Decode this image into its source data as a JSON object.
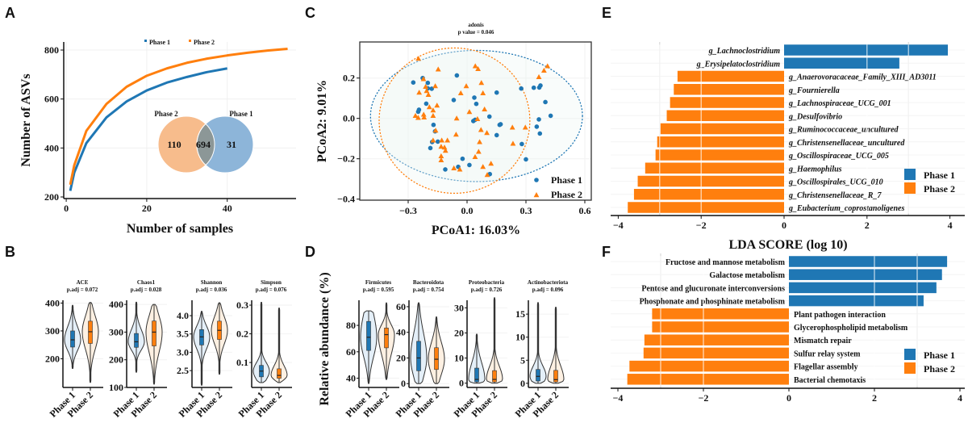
{
  "panel_labels": {
    "A": "A",
    "B": "B",
    "C": "C",
    "D": "D",
    "E": "E",
    "F": "F"
  },
  "colors": {
    "phase1": "#1f77b4",
    "phase2": "#ff7f0e",
    "venn_phase2": "#f7bc8c",
    "venn_phase1": "#8db5d9",
    "venn_overlap": "#8c9797"
  },
  "chart_data": [
    {
      "panel": "A",
      "type": "line",
      "xlabel": "Number of samples",
      "ylabel": "Number of ASVs",
      "xlim": [
        0,
        57
      ],
      "ylim": [
        193,
        833
      ],
      "xticks": [
        0,
        20,
        40
      ],
      "yticks": [
        200,
        400,
        600,
        800
      ],
      "grid": true,
      "legend_position": "top",
      "series": [
        {
          "name": "Phase 1",
          "color": "#1f77b4",
          "x": [
            1,
            2,
            5,
            10,
            15,
            20,
            25,
            30,
            35,
            40
          ],
          "y": [
            225,
            300,
            420,
            525,
            590,
            635,
            667,
            690,
            710,
            725
          ]
        },
        {
          "name": "Phase 2",
          "color": "#ff7f0e",
          "x": [
            1,
            2,
            5,
            10,
            15,
            20,
            25,
            30,
            35,
            40,
            45,
            50,
            55
          ],
          "y": [
            250,
            330,
            470,
            580,
            650,
            695,
            725,
            748,
            765,
            778,
            789,
            798,
            805
          ]
        }
      ],
      "venn": {
        "sets": [
          {
            "name": "Phase 2",
            "unique": "110"
          },
          {
            "name": "Phase 1",
            "unique": "31"
          }
        ],
        "shared": "694"
      }
    },
    {
      "panel": "C",
      "type": "scatter",
      "title": "adonis",
      "subtitle": "p value = 0.046",
      "xlabel": "PCoA1: 16.03%",
      "ylabel": "PCoA2: 9.01%",
      "xlim": [
        -0.547,
        0.633
      ],
      "ylim": [
        -0.405,
        0.379
      ],
      "xticks": [
        -0.3,
        0.0,
        0.3,
        0.6
      ],
      "xtick_labels": [
        "-0.3",
        "0.0",
        "0.3",
        "0.6"
      ],
      "yticks": [
        -0.4,
        -0.2,
        0.0,
        0.2
      ],
      "ytick_labels": [
        "-0.4",
        "-0.2",
        "0.0",
        "0.2"
      ],
      "legend_position": "bottom-right",
      "series": [
        {
          "name": "Phase 1",
          "color": "#1f77b4",
          "marker": "circle",
          "ellipse": {
            "center": [
              0.048,
              0.012
            ],
            "radii": [
              0.54,
              0.325
            ]
          },
          "points": [
            [
              -0.274,
              0.178
            ],
            [
              -0.226,
              0.2
            ],
            [
              -0.2,
              0.176
            ],
            [
              -0.2,
              0.149
            ],
            [
              -0.18,
              0.147
            ],
            [
              -0.208,
              0.073
            ],
            [
              -0.245,
              0.043
            ],
            [
              -0.249,
              0.033
            ],
            [
              -0.171,
              -0.032
            ],
            [
              -0.163,
              -0.064
            ],
            [
              -0.178,
              -0.117
            ],
            [
              -0.149,
              -0.115
            ],
            [
              -0.187,
              -0.147
            ],
            [
              -0.111,
              -0.253
            ],
            [
              -0.052,
              0.213
            ],
            [
              -0.068,
              0.091
            ],
            [
              0.037,
              0.103
            ],
            [
              0.047,
              0.072
            ],
            [
              0.032,
              -0.013
            ],
            [
              0.041,
              -0.007
            ],
            [
              0.151,
              0.128
            ],
            [
              0.114,
              0.009
            ],
            [
              0.171,
              -0.029
            ],
            [
              0.166,
              -0.032
            ],
            [
              0.151,
              -0.083
            ],
            [
              -0.023,
              -0.2
            ],
            [
              -0.045,
              -0.24
            ],
            [
              0.012,
              -0.231
            ],
            [
              0.116,
              -0.276
            ],
            [
              0.276,
              0.148
            ],
            [
              0.279,
              -0.127
            ],
            [
              0.3,
              -0.203
            ],
            [
              0.34,
              0.152
            ],
            [
              0.368,
              0.153
            ],
            [
              0.374,
              0.163
            ],
            [
              0.399,
              0.081
            ],
            [
              0.426,
              0.013
            ],
            [
              0.366,
              -0.005
            ],
            [
              0.355,
              -0.041
            ],
            [
              0.371,
              -0.075
            ]
          ]
        },
        {
          "name": "Phase 2",
          "color": "#ff7f0e",
          "marker": "triangle",
          "ellipse": {
            "center": [
              -0.064,
              -0.011
            ],
            "radii": [
              0.384,
              0.36
            ]
          },
          "points": [
            [
              -0.248,
              0.296
            ],
            [
              -0.147,
              0.243
            ],
            [
              -0.222,
              0.195
            ],
            [
              -0.211,
              0.157
            ],
            [
              -0.244,
              0.128
            ],
            [
              -0.206,
              0.136
            ],
            [
              -0.197,
              0.117
            ],
            [
              -0.162,
              0.16
            ],
            [
              -0.192,
              0.056
            ],
            [
              -0.153,
              0.064
            ],
            [
              -0.173,
              0.04
            ],
            [
              -0.173,
              0.013
            ],
            [
              -0.263,
              0.013
            ],
            [
              -0.249,
              0.003
            ],
            [
              -0.221,
              0.019
            ],
            [
              -0.219,
              0.005
            ],
            [
              -0.16,
              -0.06
            ],
            [
              -0.173,
              -0.109
            ],
            [
              -0.129,
              -0.109
            ],
            [
              -0.1,
              -0.109
            ],
            [
              -0.132,
              -0.14
            ],
            [
              -0.115,
              -0.144
            ],
            [
              -0.11,
              -0.16
            ],
            [
              -0.132,
              -0.187
            ],
            [
              -0.132,
              -0.207
            ],
            [
              -0.067,
              -0.247
            ],
            [
              -0.037,
              -0.253
            ],
            [
              0.042,
              0.259
            ],
            [
              0.056,
              0.245
            ],
            [
              -0.004,
              0.16
            ],
            [
              -0.032,
              0.125
            ],
            [
              0.073,
              0.176
            ],
            [
              0.081,
              0.125
            ],
            [
              0.012,
              0.032
            ],
            [
              -0.053,
              0.0
            ],
            [
              0.089,
              0.045
            ],
            [
              -0.056,
              -0.08
            ],
            [
              0.053,
              -0.003
            ],
            [
              0.071,
              -0.057
            ],
            [
              0.101,
              -0.072
            ],
            [
              0.064,
              -0.117
            ],
            [
              0.059,
              -0.165
            ],
            [
              0.041,
              -0.191
            ],
            [
              0.081,
              -0.24
            ],
            [
              0.103,
              -0.28
            ],
            [
              0.122,
              -0.224
            ],
            [
              0.231,
              -0.045
            ],
            [
              0.297,
              -0.045
            ],
            [
              0.234,
              -0.125
            ],
            [
              0.366,
              0.205
            ],
            [
              0.392,
              0.237
            ],
            [
              0.41,
              0.259
            ]
          ]
        }
      ]
    },
    {
      "panel": "B",
      "type": "violin",
      "ylabel": "",
      "subplots": [
        {
          "title": "ACE",
          "subtitle": "p.adj = 0.072",
          "ylim": [
            97,
            410
          ],
          "yticks": [
            200,
            300,
            400
          ],
          "ytick_labels": [
            "200",
            "300",
            "400"
          ],
          "groups": [
            {
              "name": "Phase 1",
              "min": 165,
              "q1": 242,
              "median": 268,
              "q3": 300,
              "max": 392
            },
            {
              "name": "Phase 2",
              "min": 115,
              "q1": 255,
              "median": 297,
              "q3": 335,
              "max": 402
            }
          ]
        },
        {
          "title": "Chaos1",
          "subtitle": "p.adj = 0.028",
          "ylim": [
            100,
            415
          ],
          "yticks": [
            100,
            200,
            300,
            400
          ],
          "ytick_labels": [
            "100",
            "200",
            "300",
            "400"
          ],
          "groups": [
            {
              "name": "Phase 1",
              "min": 155,
              "q1": 245,
              "median": 265,
              "q3": 295,
              "max": 408
            },
            {
              "name": "Phase 2",
              "min": 112,
              "q1": 250,
              "median": 300,
              "q3": 340,
              "max": 400
            }
          ]
        },
        {
          "title": "Shannon",
          "subtitle": "p.adj = 0.036",
          "ylim": [
            2.04,
            4.42
          ],
          "yticks": [
            2.5,
            3.0,
            3.5,
            4.0
          ],
          "ytick_labels": [
            "2.5",
            "3.0",
            "3.5",
            "4.0"
          ],
          "groups": [
            {
              "name": "Phase 1",
              "min": 2.1,
              "q1": 3.2,
              "median": 3.42,
              "q3": 3.62,
              "max": 4.12
            },
            {
              "name": "Phase 2",
              "min": 2.4,
              "q1": 3.35,
              "median": 3.6,
              "q3": 3.85,
              "max": 4.35
            }
          ]
        },
        {
          "title": "Simpson",
          "subtitle": "p.adj = 0.076",
          "ylim": [
            0.013,
            0.317
          ],
          "yticks": [
            0.1,
            0.2,
            0.3
          ],
          "ytick_labels": [
            "0.1",
            "0.2",
            "0.3"
          ],
          "groups": [
            {
              "name": "Phase 1",
              "min": 0.03,
              "q1": 0.05,
              "median": 0.07,
              "q3": 0.09,
              "max": 0.31
            },
            {
              "name": "Phase 2",
              "min": 0.03,
              "q1": 0.045,
              "median": 0.055,
              "q3": 0.078,
              "max": 0.29
            }
          ]
        }
      ]
    },
    {
      "panel": "D",
      "type": "violin",
      "ylabel": "Relative abundance (%)",
      "subplots": [
        {
          "title": "Firmicutes",
          "subtitle": "p.adj = 0.595",
          "ylim": [
            33,
            99
          ],
          "yticks": [
            40,
            60,
            80
          ],
          "ytick_labels": [
            "40",
            "60",
            "80"
          ],
          "groups": [
            {
              "name": "Phase 1",
              "min": 36,
              "q1": 61,
              "median": 71,
              "q3": 83,
              "max": 91
            },
            {
              "name": "Phase 2",
              "min": 39,
              "q1": 63,
              "median": 73,
              "q3": 78,
              "max": 97
            }
          ]
        },
        {
          "title": "Bacteroidota",
          "subtitle": "p.adj = 0.754",
          "ylim": [
            -3,
            65
          ],
          "yticks": [
            0,
            20,
            40,
            60
          ],
          "ytick_labels": [
            "0",
            "20",
            "40",
            "60"
          ],
          "groups": [
            {
              "name": "Phase 1",
              "min": 0,
              "q1": 10,
              "median": 20,
              "q3": 33,
              "max": 63
            },
            {
              "name": "Phase 2",
              "min": 0,
              "q1": 11,
              "median": 19,
              "q3": 28,
              "max": 52
            }
          ]
        },
        {
          "title": "Proteobacteria",
          "subtitle": "p.adj = 0.726",
          "ylim": [
            -1.7,
            33
          ],
          "yticks": [
            0,
            10,
            20,
            30
          ],
          "ytick_labels": [
            "0",
            "10",
            "20",
            "30"
          ],
          "groups": [
            {
              "name": "Phase 1",
              "min": 0,
              "q1": 0.5,
              "median": 1.5,
              "q3": 6,
              "max": 19.5
            },
            {
              "name": "Phase 2",
              "min": 0,
              "q1": 0.5,
              "median": 1.5,
              "q3": 5,
              "max": 34
            }
          ]
        },
        {
          "title": "Actinobacteriota",
          "subtitle": "p.adj = 0.096",
          "ylim": [
            -0.9,
            18
          ],
          "yticks": [
            0,
            5,
            10,
            15
          ],
          "ytick_labels": [
            "0",
            "5",
            "10",
            "15"
          ],
          "groups": [
            {
              "name": "Phase 1",
              "min": 0,
              "q1": 0.5,
              "median": 1.5,
              "q3": 3,
              "max": 17.5
            },
            {
              "name": "Phase 2",
              "min": 0,
              "q1": 0.3,
              "median": 0.8,
              "q3": 2.8,
              "max": 16.5
            }
          ]
        }
      ]
    },
    {
      "panel": "E",
      "type": "bar",
      "orientation": "horizontal",
      "xlabel": "LDA SCORE (log 10)",
      "xlim": [
        -4.2,
        4.35
      ],
      "xticks": [
        -4,
        -2,
        0,
        2,
        4
      ],
      "xtick_labels": [
        "-4",
        "-2",
        "0",
        "2",
        "4"
      ],
      "legend_position": "bottom-right",
      "legend": [
        "Phase 1",
        "Phase 2"
      ],
      "categories": [
        "g_Lachnoclostridium",
        "g_Erysipelatoclostridium",
        "g_Anaerovoracaceae_Family_XIII_AD3011",
        "g_Fournierella",
        "g_Lachnospiraceae_UCG_001",
        "g_Desulfovibrio",
        "g_Ruminococcaceae_uncultured",
        "g_Christensenellaceae_uncultured",
        "g_Oscillospiraceae_UCG_005",
        "g_Haemophilus",
        "g_Oscillospirales_UCG_010",
        "g_Christensenellaceae_R_7",
        "g_Eubacterium_coprostanoligenes"
      ],
      "values": [
        3.95,
        2.78,
        -2.57,
        -2.66,
        -2.75,
        -2.83,
        -2.98,
        -3.06,
        -3.1,
        -3.35,
        -3.53,
        -3.62,
        -3.77
      ]
    },
    {
      "panel": "F",
      "type": "bar",
      "orientation": "horizontal",
      "xlim": [
        -4.2,
        4.1
      ],
      "xticks": [
        -4,
        -2,
        0,
        2,
        4
      ],
      "xtick_labels": [
        "-4",
        "-2",
        "0",
        "2",
        "4"
      ],
      "legend_position": "bottom-right",
      "legend": [
        "Phase 1",
        "Phase 2"
      ],
      "categories": [
        "Fructose and mannose metabolism",
        "Galactose metabolism",
        "Pentose and glucuronate interconversions",
        "Phosphonate and phosphinate metabolism",
        "Plant pathogen interaction",
        "Glycerophospholipid metabolism",
        "Mismatch repair",
        "Sulfur relay system",
        "Flagellar assembly",
        "Bacterial chemotaxis"
      ],
      "values": [
        3.7,
        3.58,
        3.45,
        3.15,
        -3.2,
        -3.2,
        -3.38,
        -3.4,
        -3.73,
        -3.78
      ]
    }
  ]
}
